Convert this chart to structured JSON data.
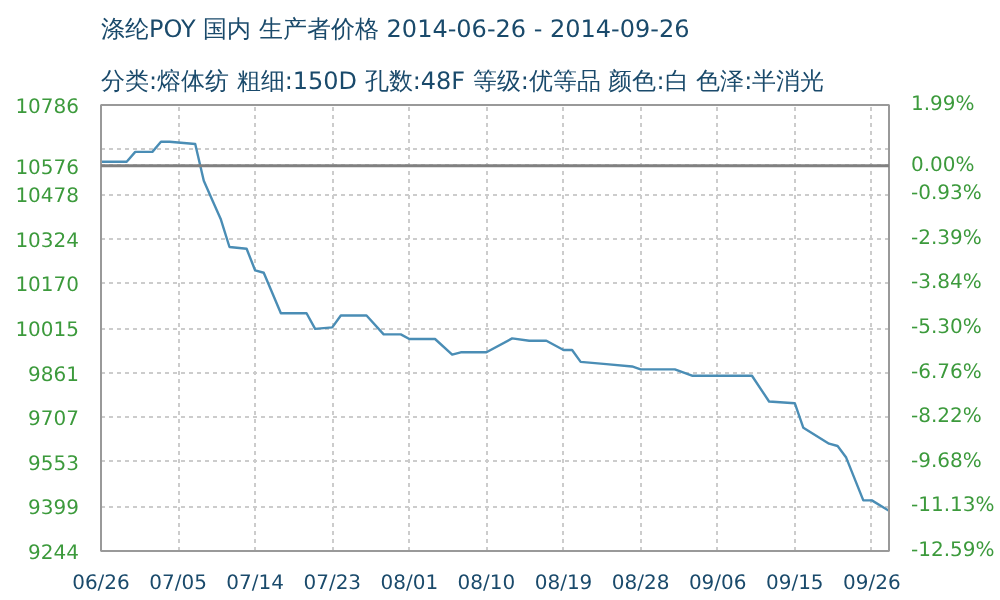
{
  "chart_data": {
    "type": "line",
    "title": "涤纶POY 国内 生产者价格 2014-06-26 - 2014-09-26",
    "subtitle": "分类:熔体纺 粗细:150D 孔数:48F 等级:优等品 颜色:白 色泽:半消光",
    "x": [
      "2014-06-26",
      "2014-06-29",
      "2014-06-30",
      "2014-07-02",
      "2014-07-03",
      "2014-07-04",
      "2014-07-07",
      "2014-07-08",
      "2014-07-09",
      "2014-07-10",
      "2014-07-11",
      "2014-07-13",
      "2014-07-14",
      "2014-07-15",
      "2014-07-17",
      "2014-07-20",
      "2014-07-21",
      "2014-07-23",
      "2014-07-24",
      "2014-07-27",
      "2014-07-29",
      "2014-07-31",
      "2014-08-01",
      "2014-08-04",
      "2014-08-06",
      "2014-08-07",
      "2014-08-10",
      "2014-08-13",
      "2014-08-15",
      "2014-08-17",
      "2014-08-19",
      "2014-08-20",
      "2014-08-21",
      "2014-08-24",
      "2014-08-27",
      "2014-08-28",
      "2014-09-01",
      "2014-09-03",
      "2014-09-10",
      "2014-09-12",
      "2014-09-15",
      "2014-09-16",
      "2014-09-19",
      "2014-09-20",
      "2014-09-21",
      "2014-09-23",
      "2014-09-24",
      "2014-09-26"
    ],
    "series": [
      {
        "color": "#4a8db5",
        "values": [
          10590,
          10590,
          10624,
          10624,
          10659,
          10659,
          10651,
          10524,
          10457,
          10390,
          10295,
          10289,
          10214,
          10206,
          10066,
          10066,
          10012,
          10017,
          10058,
          10058,
          9993,
          9993,
          9977,
          9977,
          9923,
          9931,
          9931,
          9979,
          9971,
          9971,
          9939,
          9939,
          9898,
          9890,
          9882,
          9872,
          9872,
          9850,
          9850,
          9761,
          9755,
          9670,
          9615,
          9607,
          9567,
          9419,
          9419,
          9383
        ]
      }
    ],
    "xlim": [
      "2014-06-26",
      "2014-09-26"
    ],
    "xticks": [
      {
        "value": "2014-06-26",
        "label": "06/26"
      },
      {
        "value": "2014-07-05",
        "label": "07/05"
      },
      {
        "value": "2014-07-14",
        "label": "07/14"
      },
      {
        "value": "2014-07-23",
        "label": "07/23"
      },
      {
        "value": "2014-08-01",
        "label": "08/01"
      },
      {
        "value": "2014-08-10",
        "label": "08/10"
      },
      {
        "value": "2014-08-19",
        "label": "08/19"
      },
      {
        "value": "2014-08-28",
        "label": "08/28"
      },
      {
        "value": "2014-09-06",
        "label": "09/06"
      },
      {
        "value": "2014-09-15",
        "label": "09/15"
      },
      {
        "value": "2014-09-24",
        "label": "09/26"
      }
    ],
    "ylim": [
      9244,
      10786
    ],
    "yticks": [
      9244,
      9399,
      9553,
      9707,
      9861,
      10015,
      10170,
      10324,
      10478,
      10576,
      {
        "value": 10632,
        "label": null
      },
      10786
    ],
    "y2lim": [
      -12.594,
      1.99
    ],
    "y2ticks": [
      {
        "value": -12.59,
        "label": "-12.59%"
      },
      {
        "value": -11.13,
        "label": "-11.13%"
      },
      {
        "value": -9.68,
        "label": "-9.68%"
      },
      {
        "value": -8.22,
        "label": "-8.22%"
      },
      {
        "value": -6.76,
        "label": "-6.76%"
      },
      {
        "value": -5.3,
        "label": "-5.30%"
      },
      {
        "value": -3.84,
        "label": "-3.84%"
      },
      {
        "value": -2.39,
        "label": "-2.39%"
      },
      {
        "value": -0.93,
        "label": "-0.93%"
      },
      {
        "value": 0,
        "label": "0.00%"
      },
      {
        "value": 0.53,
        "label": null
      },
      {
        "value": 1.99,
        "label": "1.99%"
      }
    ],
    "ref_lines": [
      {
        "axis": "y",
        "value": 10576,
        "color": "#808080"
      }
    ],
    "grid": true,
    "marker": "none",
    "line_style": "solid"
  }
}
